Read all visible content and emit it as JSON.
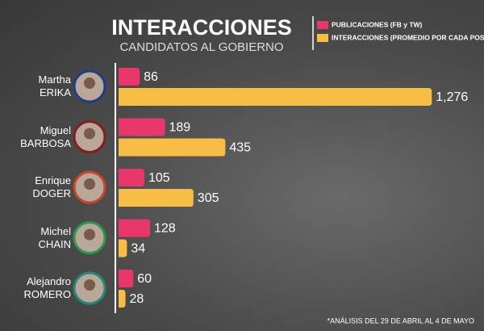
{
  "chart_data": {
    "type": "bar",
    "orientation": "horizontal",
    "title": "INTERACCIONES",
    "subtitle": "CANDIDATOS AL GOBIERNO",
    "note": "*ANÁLISIS DEL 29 DE ABRIL AL 4 DE MAYO",
    "categories": [
      "Martha\nERIKA",
      "Miguel\nBARBOSA",
      "Enrique\nDOGER",
      "Michel\nCHAIN",
      "Alejandro\nROMERO"
    ],
    "series": [
      {
        "name": "PUBLICACIONES (FB y TW)",
        "color": "#e8386b",
        "values": [
          86,
          189,
          105,
          128,
          60
        ]
      },
      {
        "name": "INTERACCIONES (PROMEDIO POR CADA POST)",
        "color": "#f7bd45",
        "values": [
          1276,
          435,
          305,
          34,
          28
        ],
        "value_labels": [
          "1,276",
          "435",
          "305",
          "34",
          "28"
        ]
      }
    ],
    "xlim": [
      0,
      1400
    ],
    "legend": "top-right"
  }
}
